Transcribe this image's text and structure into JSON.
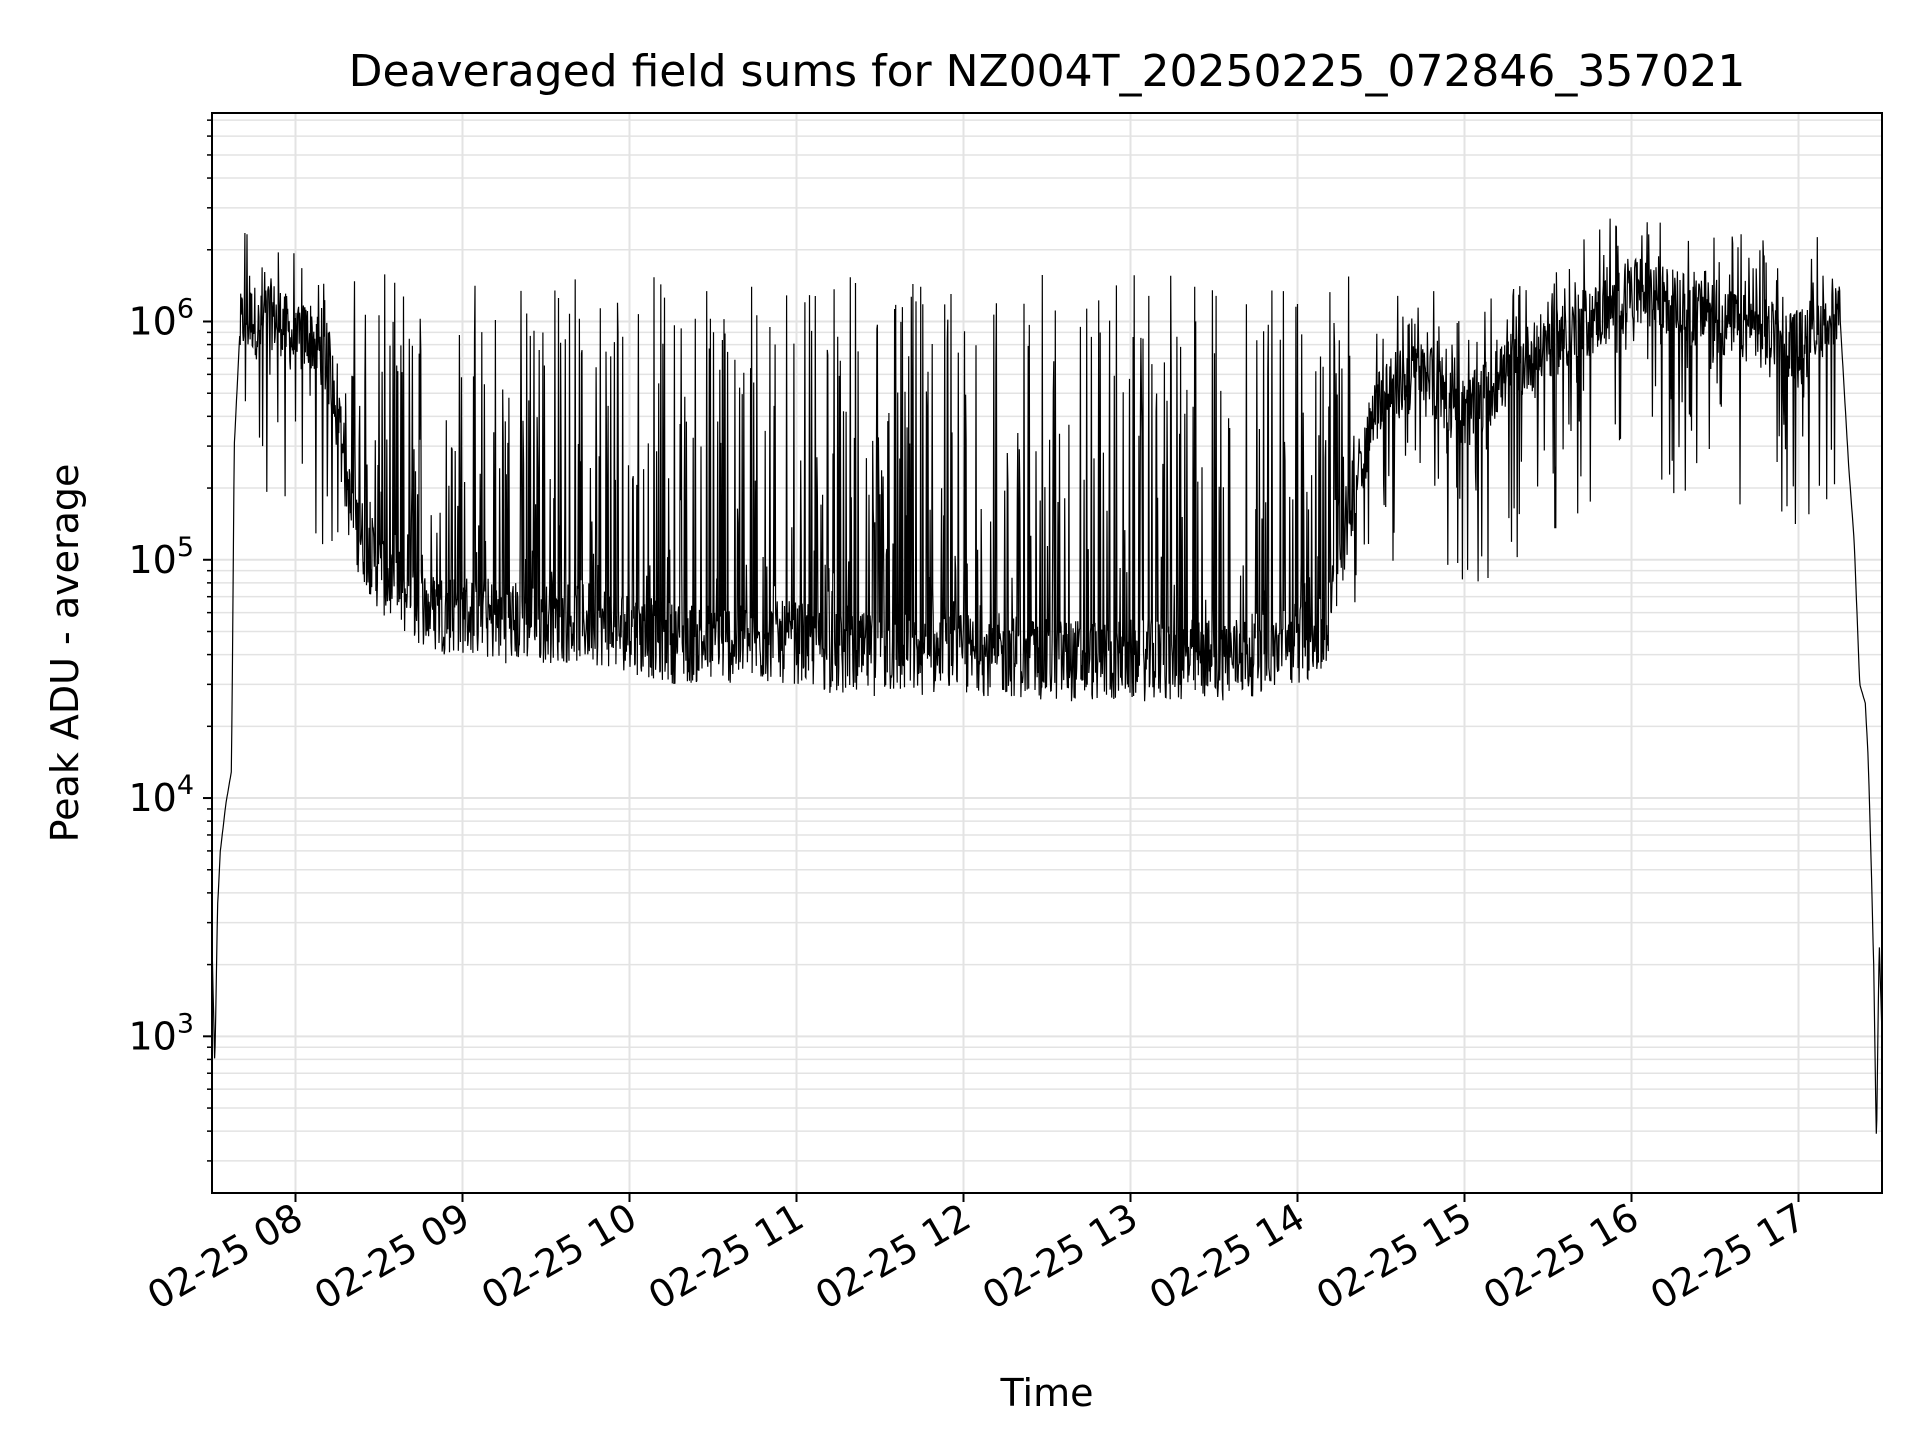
{
  "chart_data": {
    "type": "line",
    "title": "Deaveraged field sums for NZ004T_20250225_072846_357021",
    "xlabel": "Time",
    "ylabel": "Peak ADU - average",
    "yscale": "log",
    "xlim": [
      "2025-02-25 07:30",
      "2025-02-25 17:30"
    ],
    "ylim": [
      220,
      7500000
    ],
    "grid": true,
    "line_color": "#000000",
    "grid_color": "#e3e3e3",
    "x_ticks": [
      {
        "value": "2025-02-25 08:00",
        "label": "02-25 08"
      },
      {
        "value": "2025-02-25 09:00",
        "label": "02-25 09"
      },
      {
        "value": "2025-02-25 10:00",
        "label": "02-25 10"
      },
      {
        "value": "2025-02-25 11:00",
        "label": "02-25 11"
      },
      {
        "value": "2025-02-25 12:00",
        "label": "02-25 12"
      },
      {
        "value": "2025-02-25 13:00",
        "label": "02-25 13"
      },
      {
        "value": "2025-02-25 14:00",
        "label": "02-25 14"
      },
      {
        "value": "2025-02-25 15:00",
        "label": "02-25 15"
      },
      {
        "value": "2025-02-25 16:00",
        "label": "02-25 16"
      },
      {
        "value": "2025-02-25 17:00",
        "label": "02-25 17"
      }
    ],
    "y_ticks": [
      {
        "value": 1000,
        "base": "10",
        "exp": "3"
      },
      {
        "value": 10000,
        "base": "10",
        "exp": "4"
      },
      {
        "value": 100000,
        "base": "10",
        "exp": "5"
      },
      {
        "value": 1000000,
        "base": "10",
        "exp": "6"
      }
    ],
    "series": [
      {
        "x": [
          "2025-02-25 07:30",
          "2025-02-25 07:31",
          "2025-02-25 07:32",
          "2025-02-25 07:33",
          "2025-02-25 07:35",
          "2025-02-25 07:37",
          "2025-02-25 07:38",
          "2025-02-25 07:40",
          "2025-02-25 07:41",
          "2025-02-25 07:42",
          "2025-02-25 07:43",
          "2025-02-25 07:45",
          "2025-02-25 07:47",
          "2025-02-25 07:50",
          "2025-02-25 07:55",
          "2025-02-25 08:00",
          "2025-02-25 08:05",
          "2025-02-25 08:10",
          "2025-02-25 08:15",
          "2025-02-25 08:20",
          "2025-02-25 08:30",
          "2025-02-25 08:40",
          "2025-02-25 08:50",
          "2025-02-25 09:00",
          "2025-02-25 09:15",
          "2025-02-25 09:30",
          "2025-02-25 09:45",
          "2025-02-25 10:00",
          "2025-02-25 10:15",
          "2025-02-25 10:30",
          "2025-02-25 10:45",
          "2025-02-25 11:00",
          "2025-02-25 11:15",
          "2025-02-25 11:30",
          "2025-02-25 11:45",
          "2025-02-25 12:00",
          "2025-02-25 12:15",
          "2025-02-25 12:30",
          "2025-02-25 12:45",
          "2025-02-25 13:00",
          "2025-02-25 13:15",
          "2025-02-25 13:30",
          "2025-02-25 13:45",
          "2025-02-25 14:00",
          "2025-02-25 14:10",
          "2025-02-25 14:20",
          "2025-02-25 14:30",
          "2025-02-25 14:45",
          "2025-02-25 15:00",
          "2025-02-25 15:15",
          "2025-02-25 15:30",
          "2025-02-25 15:45",
          "2025-02-25 16:00",
          "2025-02-25 16:15",
          "2025-02-25 16:30",
          "2025-02-25 16:45",
          "2025-02-25 17:00",
          "2025-02-25 17:05",
          "2025-02-25 17:10",
          "2025-02-25 17:15",
          "2025-02-25 17:18",
          "2025-02-25 17:20",
          "2025-02-25 17:22",
          "2025-02-25 17:24",
          "2025-02-25 17:25",
          "2025-02-25 17:26",
          "2025-02-25 17:27",
          "2025-02-25 17:28",
          "2025-02-25 17:29",
          "2025-02-25 17:30"
        ],
        "y": [
          2500,
          750,
          3500,
          6000,
          9500,
          13000,
          300000,
          900000,
          1000000,
          1100000,
          1000000,
          1050000,
          900000,
          1100000,
          1000000,
          800000,
          900000,
          700000,
          500000,
          150000,
          90000,
          70000,
          60000,
          60000,
          55000,
          55000,
          55000,
          50000,
          45000,
          45000,
          45000,
          45000,
          40000,
          40000,
          40000,
          40000,
          40000,
          38000,
          38000,
          38000,
          38000,
          38000,
          40000,
          45000,
          48000,
          200000,
          500000,
          600000,
          400000,
          600000,
          800000,
          1000000,
          1300000,
          1200000,
          1000000,
          900000,
          800000,
          900000,
          1000000,
          1000000,
          250000,
          120000,
          30000,
          25000,
          15000,
          6000,
          2000,
          350,
          2500,
          1000
        ]
      }
    ]
  }
}
